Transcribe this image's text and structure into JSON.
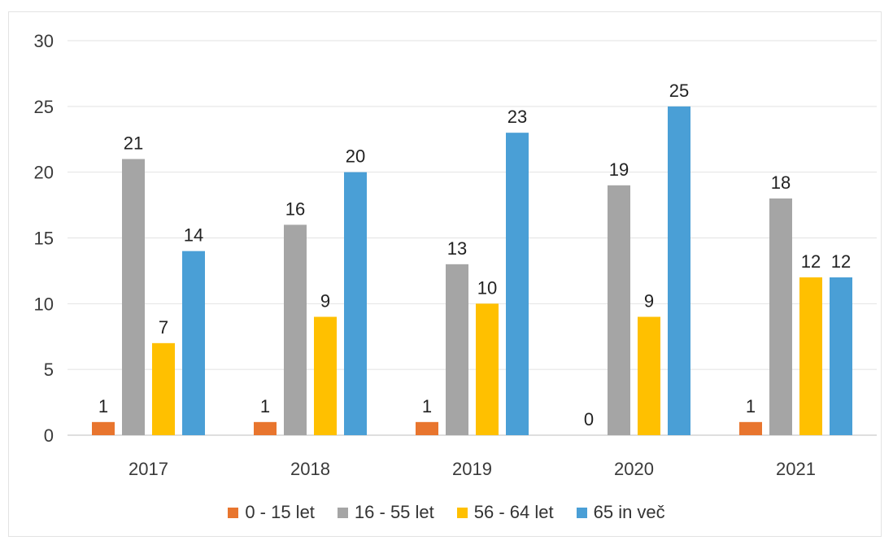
{
  "chart_data": {
    "type": "bar",
    "categories": [
      "2017",
      "2018",
      "2019",
      "2020",
      "2021"
    ],
    "series": [
      {
        "name": "0 - 15 let",
        "color": "#e8752e",
        "values": [
          1,
          1,
          1,
          0,
          1
        ]
      },
      {
        "name": "16 - 55 let",
        "color": "#a5a5a5",
        "values": [
          21,
          16,
          13,
          19,
          18
        ]
      },
      {
        "name": "56 - 64 let",
        "color": "#ffc000",
        "values": [
          7,
          9,
          10,
          9,
          12
        ]
      },
      {
        "name": "65 in več",
        "color": "#4a9fd6",
        "values": [
          14,
          20,
          23,
          25,
          12
        ]
      }
    ],
    "ylim": [
      0,
      30
    ],
    "yticks": [
      "0",
      "5",
      "10",
      "15",
      "20",
      "25",
      "30"
    ],
    "grid": true,
    "legend_position": "bottom",
    "data_labels": true
  }
}
